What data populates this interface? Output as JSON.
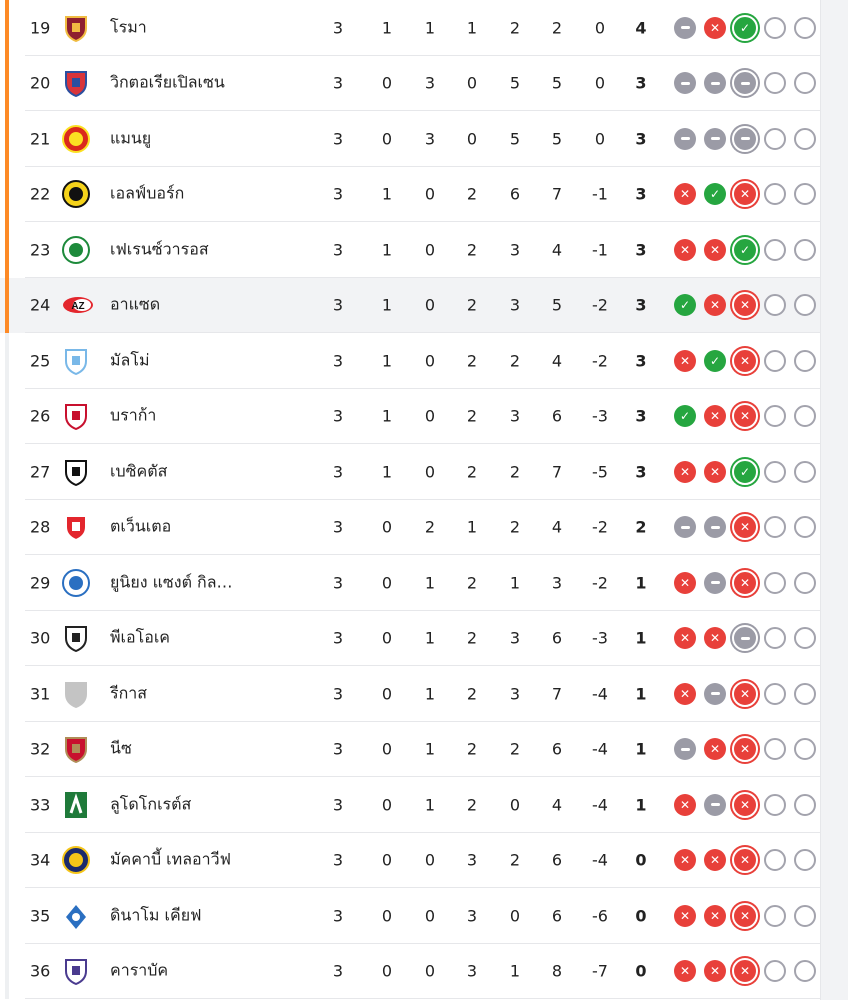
{
  "colors": {
    "win": "#26a640",
    "loss": "#e8403a",
    "draw": "#9b9ba6",
    "qualify": "#fd8a26"
  },
  "rows": [
    {
      "rank": "19",
      "team": "โรมา",
      "logo": "roma-crest",
      "p": "3",
      "w": "1",
      "d": "1",
      "l": "1",
      "gf": "2",
      "ga": "2",
      "gd": "0",
      "pts": "4",
      "form": [
        "D",
        "L",
        "W"
      ],
      "q": true
    },
    {
      "rank": "20",
      "team": "วิกตอเรียเปิลเซน",
      "logo": "plzen-crest",
      "p": "3",
      "w": "0",
      "d": "3",
      "l": "0",
      "gf": "5",
      "ga": "5",
      "gd": "0",
      "pts": "3",
      "form": [
        "D",
        "D",
        "D"
      ],
      "q": true
    },
    {
      "rank": "21",
      "team": "แมนยู",
      "logo": "man-utd-crest",
      "p": "3",
      "w": "0",
      "d": "3",
      "l": "0",
      "gf": "5",
      "ga": "5",
      "gd": "0",
      "pts": "3",
      "form": [
        "D",
        "D",
        "D"
      ],
      "q": true
    },
    {
      "rank": "22",
      "team": "เอลฟ์บอร์ก",
      "logo": "elfsborg-crest",
      "p": "3",
      "w": "1",
      "d": "0",
      "l": "2",
      "gf": "6",
      "ga": "7",
      "gd": "-1",
      "pts": "3",
      "form": [
        "L",
        "W",
        "L"
      ],
      "q": true
    },
    {
      "rank": "23",
      "team": "เฟเรนซ์วารอส",
      "logo": "ferencvaros-crest",
      "p": "3",
      "w": "1",
      "d": "0",
      "l": "2",
      "gf": "3",
      "ga": "4",
      "gd": "-1",
      "pts": "3",
      "form": [
        "L",
        "L",
        "W"
      ],
      "q": true
    },
    {
      "rank": "24",
      "team": "อาแซด",
      "logo": "az-crest",
      "p": "3",
      "w": "1",
      "d": "0",
      "l": "2",
      "gf": "3",
      "ga": "5",
      "gd": "-2",
      "pts": "3",
      "form": [
        "W",
        "L",
        "L"
      ],
      "q": true,
      "hl": true
    },
    {
      "rank": "25",
      "team": "มัลโม่",
      "logo": "malmo-crest",
      "p": "3",
      "w": "1",
      "d": "0",
      "l": "2",
      "gf": "2",
      "ga": "4",
      "gd": "-2",
      "pts": "3",
      "form": [
        "L",
        "W",
        "L"
      ]
    },
    {
      "rank": "26",
      "team": "บราก้า",
      "logo": "braga-crest",
      "p": "3",
      "w": "1",
      "d": "0",
      "l": "2",
      "gf": "3",
      "ga": "6",
      "gd": "-3",
      "pts": "3",
      "form": [
        "W",
        "L",
        "L"
      ]
    },
    {
      "rank": "27",
      "team": "เบซิคตัส",
      "logo": "besiktas-crest",
      "p": "3",
      "w": "1",
      "d": "0",
      "l": "2",
      "gf": "2",
      "ga": "7",
      "gd": "-5",
      "pts": "3",
      "form": [
        "L",
        "L",
        "W"
      ]
    },
    {
      "rank": "28",
      "team": "ตเว็นเตอ",
      "logo": "twente-crest",
      "p": "3",
      "w": "0",
      "d": "2",
      "l": "1",
      "gf": "2",
      "ga": "4",
      "gd": "-2",
      "pts": "2",
      "form": [
        "D",
        "D",
        "L"
      ]
    },
    {
      "rank": "29",
      "team": "ยูนิยง แซงต์ กิล…",
      "logo": "union-sg-crest",
      "p": "3",
      "w": "0",
      "d": "1",
      "l": "2",
      "gf": "1",
      "ga": "3",
      "gd": "-2",
      "pts": "1",
      "form": [
        "L",
        "D",
        "L"
      ]
    },
    {
      "rank": "30",
      "team": "พีเอโอเค",
      "logo": "paok-crest",
      "p": "3",
      "w": "0",
      "d": "1",
      "l": "2",
      "gf": "3",
      "ga": "6",
      "gd": "-3",
      "pts": "1",
      "form": [
        "L",
        "L",
        "D"
      ]
    },
    {
      "rank": "31",
      "team": "รีกาส",
      "logo": "placeholder-shield",
      "p": "3",
      "w": "0",
      "d": "1",
      "l": "2",
      "gf": "3",
      "ga": "7",
      "gd": "-4",
      "pts": "1",
      "form": [
        "L",
        "D",
        "L"
      ]
    },
    {
      "rank": "32",
      "team": "นีซ",
      "logo": "nice-crest",
      "p": "3",
      "w": "0",
      "d": "1",
      "l": "2",
      "gf": "2",
      "ga": "6",
      "gd": "-4",
      "pts": "1",
      "form": [
        "D",
        "L",
        "L"
      ]
    },
    {
      "rank": "33",
      "team": "ลูโดโกเรต์ส",
      "logo": "ludogorets-crest",
      "p": "3",
      "w": "0",
      "d": "1",
      "l": "2",
      "gf": "0",
      "ga": "4",
      "gd": "-4",
      "pts": "1",
      "form": [
        "L",
        "D",
        "L"
      ]
    },
    {
      "rank": "34",
      "team": "มัคคาบี้ เทลอาวีฟ",
      "logo": "maccabi-crest",
      "p": "3",
      "w": "0",
      "d": "0",
      "l": "3",
      "gf": "2",
      "ga": "6",
      "gd": "-4",
      "pts": "0",
      "form": [
        "L",
        "L",
        "L"
      ]
    },
    {
      "rank": "35",
      "team": "ดินาโม เคียฟ",
      "logo": "dynamo-kyiv-crest",
      "p": "3",
      "w": "0",
      "d": "0",
      "l": "3",
      "gf": "0",
      "ga": "6",
      "gd": "-6",
      "pts": "0",
      "form": [
        "L",
        "L",
        "L"
      ]
    },
    {
      "rank": "36",
      "team": "คาราบัค",
      "logo": "qarabag-crest",
      "p": "3",
      "w": "0",
      "d": "0",
      "l": "3",
      "gf": "1",
      "ga": "8",
      "gd": "-7",
      "pts": "0",
      "form": [
        "L",
        "L",
        "L"
      ]
    }
  ]
}
